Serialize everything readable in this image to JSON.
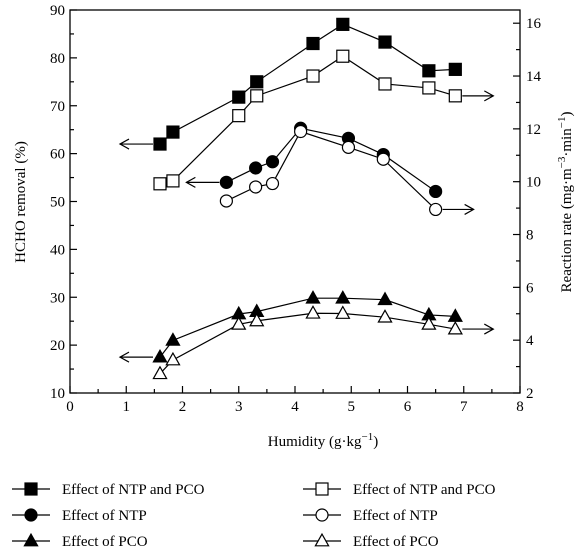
{
  "chart_data": {
    "type": "line",
    "xlabel": "Humidity (g·kg",
    "xlabel_sup": "−1",
    "xlabel_end": ")",
    "ylabel": "HCHO removal (%)",
    "y2label": "Reaction rate (mg·m",
    "y2label_sup1": "−3",
    "y2label_mid": "·min",
    "y2label_sup2": "−1",
    "y2label_end": ")",
    "xlim": [
      0,
      8
    ],
    "ylim": [
      10,
      90
    ],
    "y2lim": [
      2,
      16.5
    ],
    "x_ticks": [
      "0",
      "1",
      "2",
      "3",
      "4",
      "5",
      "6",
      "7",
      "8"
    ],
    "y_ticks": [
      "10",
      "20",
      "30",
      "40",
      "50",
      "60",
      "70",
      "80",
      "90"
    ],
    "y2_ticks": [
      "2",
      "4",
      "6",
      "8",
      "10",
      "12",
      "14",
      "16"
    ],
    "grid": false,
    "legend_position": "bottom",
    "series": [
      {
        "name": "Effect of NTP and PCO",
        "axis": "left",
        "marker": "square",
        "filled": true,
        "x": [
          1.6,
          1.83,
          3.0,
          3.32,
          4.32,
          4.85,
          5.6,
          6.38,
          6.85
        ],
        "y": [
          62,
          64.5,
          71.8,
          75,
          83,
          87,
          83.3,
          77.3,
          77.6
        ]
      },
      {
        "name": "Effect of NTP and PCO",
        "axis": "right",
        "marker": "square",
        "filled": false,
        "x": [
          1.6,
          1.83,
          3.0,
          3.32,
          4.32,
          4.85,
          5.6,
          6.38,
          6.85
        ],
        "y": [
          9.92,
          10.03,
          12.5,
          13.25,
          14.0,
          14.75,
          13.7,
          13.55,
          13.25
        ]
      },
      {
        "name": "Effect of NTP",
        "axis": "left",
        "marker": "circle",
        "filled": true,
        "x": [
          2.78,
          3.3,
          3.6,
          4.1,
          4.95,
          5.57,
          6.5
        ],
        "y": [
          54,
          57,
          58.3,
          65.3,
          63.2,
          59.8,
          52.1
        ]
      },
      {
        "name": "Effect of NTP",
        "axis": "right",
        "marker": "circle",
        "filled": false,
        "x": [
          2.78,
          3.3,
          3.6,
          4.1,
          4.95,
          5.57,
          6.5
        ],
        "y": [
          9.27,
          9.8,
          9.93,
          11.9,
          11.3,
          10.85,
          8.95
        ]
      },
      {
        "name": "Effect of PCO",
        "axis": "left",
        "marker": "triangle",
        "filled": true,
        "x": [
          1.6,
          1.83,
          3.0,
          3.32,
          4.32,
          4.85,
          5.6,
          6.38,
          6.85
        ],
        "y": [
          17.5,
          21,
          26.5,
          27,
          29.8,
          29.8,
          29.5,
          26.3,
          26
        ]
      },
      {
        "name": "Effect of PCO",
        "axis": "right",
        "marker": "triangle",
        "filled": false,
        "x": [
          1.6,
          1.83,
          3.0,
          3.32,
          4.32,
          4.85,
          5.6,
          6.38,
          6.85
        ],
        "y": [
          2.73,
          3.25,
          4.6,
          4.73,
          5.02,
          5.01,
          4.87,
          4.6,
          4.42
        ]
      }
    ],
    "annotations": [
      {
        "type": "arrow",
        "direction": "left",
        "series_index": 0
      },
      {
        "type": "arrow",
        "direction": "right",
        "series_index": 1
      },
      {
        "type": "arrow",
        "direction": "left",
        "series_index": 2
      },
      {
        "type": "arrow",
        "direction": "right",
        "series_index": 3
      },
      {
        "type": "arrow",
        "direction": "left",
        "series_index": 4
      },
      {
        "type": "arrow",
        "direction": "right",
        "series_index": 5
      }
    ]
  }
}
